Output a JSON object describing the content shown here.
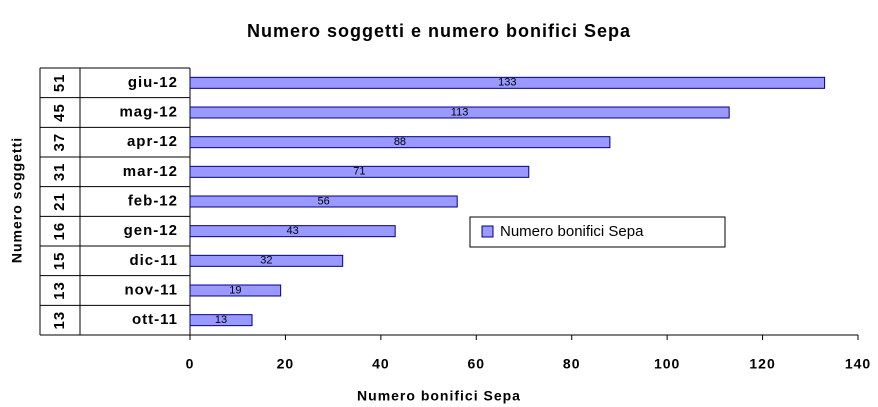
{
  "chart_data": {
    "type": "bar",
    "orientation": "horizontal",
    "title": "Numero soggetti e numero bonifici Sepa",
    "x_label": "Numero bonifici Sepa",
    "y_label": "Numero soggetti",
    "categories": [
      "ott-11",
      "nov-11",
      "dic-11",
      "gen-12",
      "feb-12",
      "mar-12",
      "apr-12",
      "mag-12",
      "giu-12"
    ],
    "soggetti": [
      13,
      13,
      15,
      16,
      21,
      31,
      37,
      45,
      51
    ],
    "series": [
      {
        "name": "Numero bonifici Sepa",
        "color": "#9999ff",
        "values": [
          13,
          19,
          32,
          43,
          56,
          71,
          88,
          113,
          133
        ]
      }
    ],
    "xlim": [
      0,
      140
    ],
    "xticks": [
      0,
      20,
      40,
      60,
      80,
      100,
      120,
      140
    ],
    "legend": "right"
  }
}
